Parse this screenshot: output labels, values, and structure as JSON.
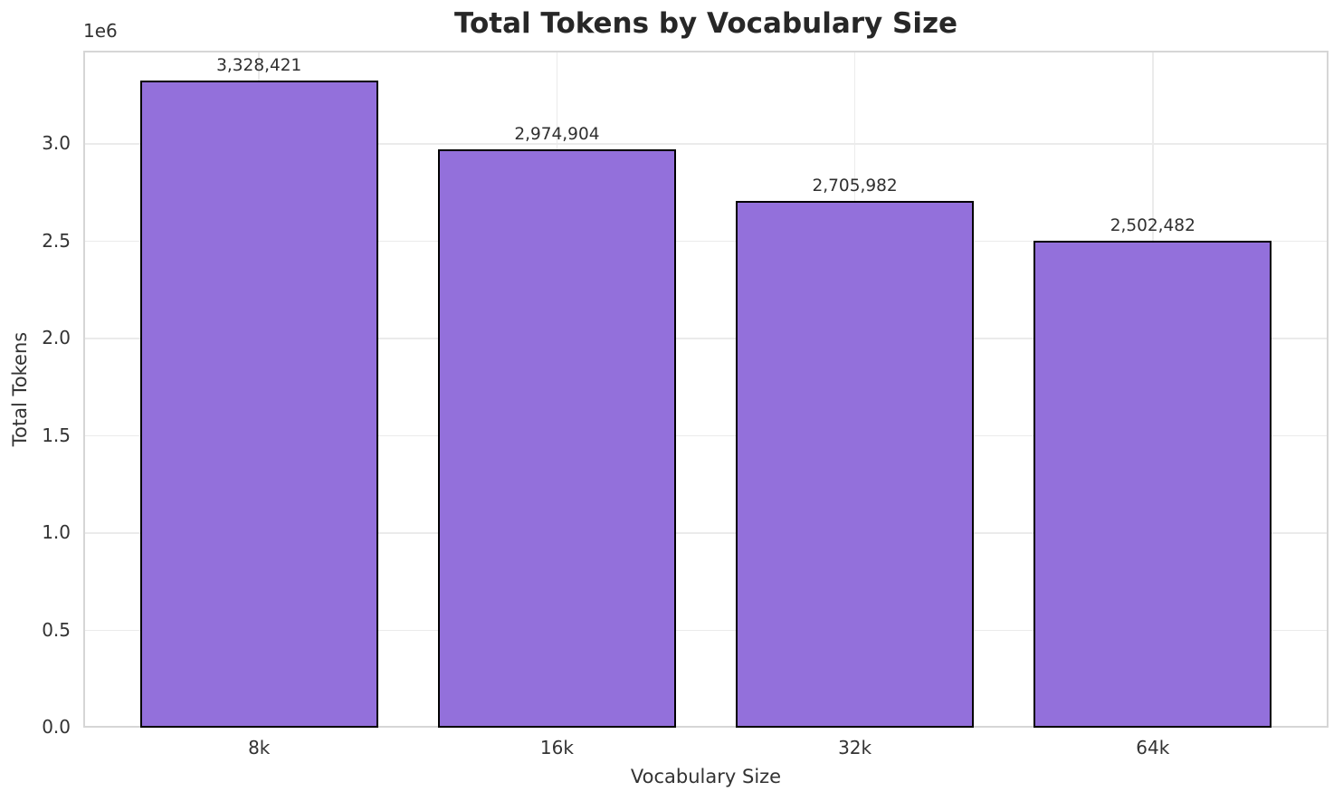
{
  "title": "Total Tokens by Vocabulary Size",
  "chart_data": {
    "type": "bar",
    "title": "Total Tokens by Vocabulary Size",
    "xlabel": "Vocabulary Size",
    "ylabel": "Total Tokens",
    "offset_text": "1e6",
    "categories": [
      "8k",
      "16k",
      "32k",
      "64k"
    ],
    "values": [
      3328421,
      2974904,
      2705982,
      2502482
    ],
    "bar_labels": [
      "3,328,421",
      "2,974,904",
      "2,705,982",
      "2,502,482"
    ],
    "ylim": [
      0,
      3480000
    ],
    "yticks": [
      0,
      500000,
      1000000,
      1500000,
      2000000,
      2500000,
      3000000
    ],
    "ytick_labels": [
      "0.0",
      "0.5",
      "1.0",
      "1.5",
      "2.0",
      "2.5",
      "3.0"
    ],
    "grid": true,
    "legend": null,
    "colors": {
      "bar_fill": "#9370DB",
      "bar_edge": "#000000",
      "grid": "#ebebeb",
      "spine": "#d6d6d6",
      "text": "#333333",
      "title_text": "#272727",
      "background": "#ffffff"
    }
  }
}
